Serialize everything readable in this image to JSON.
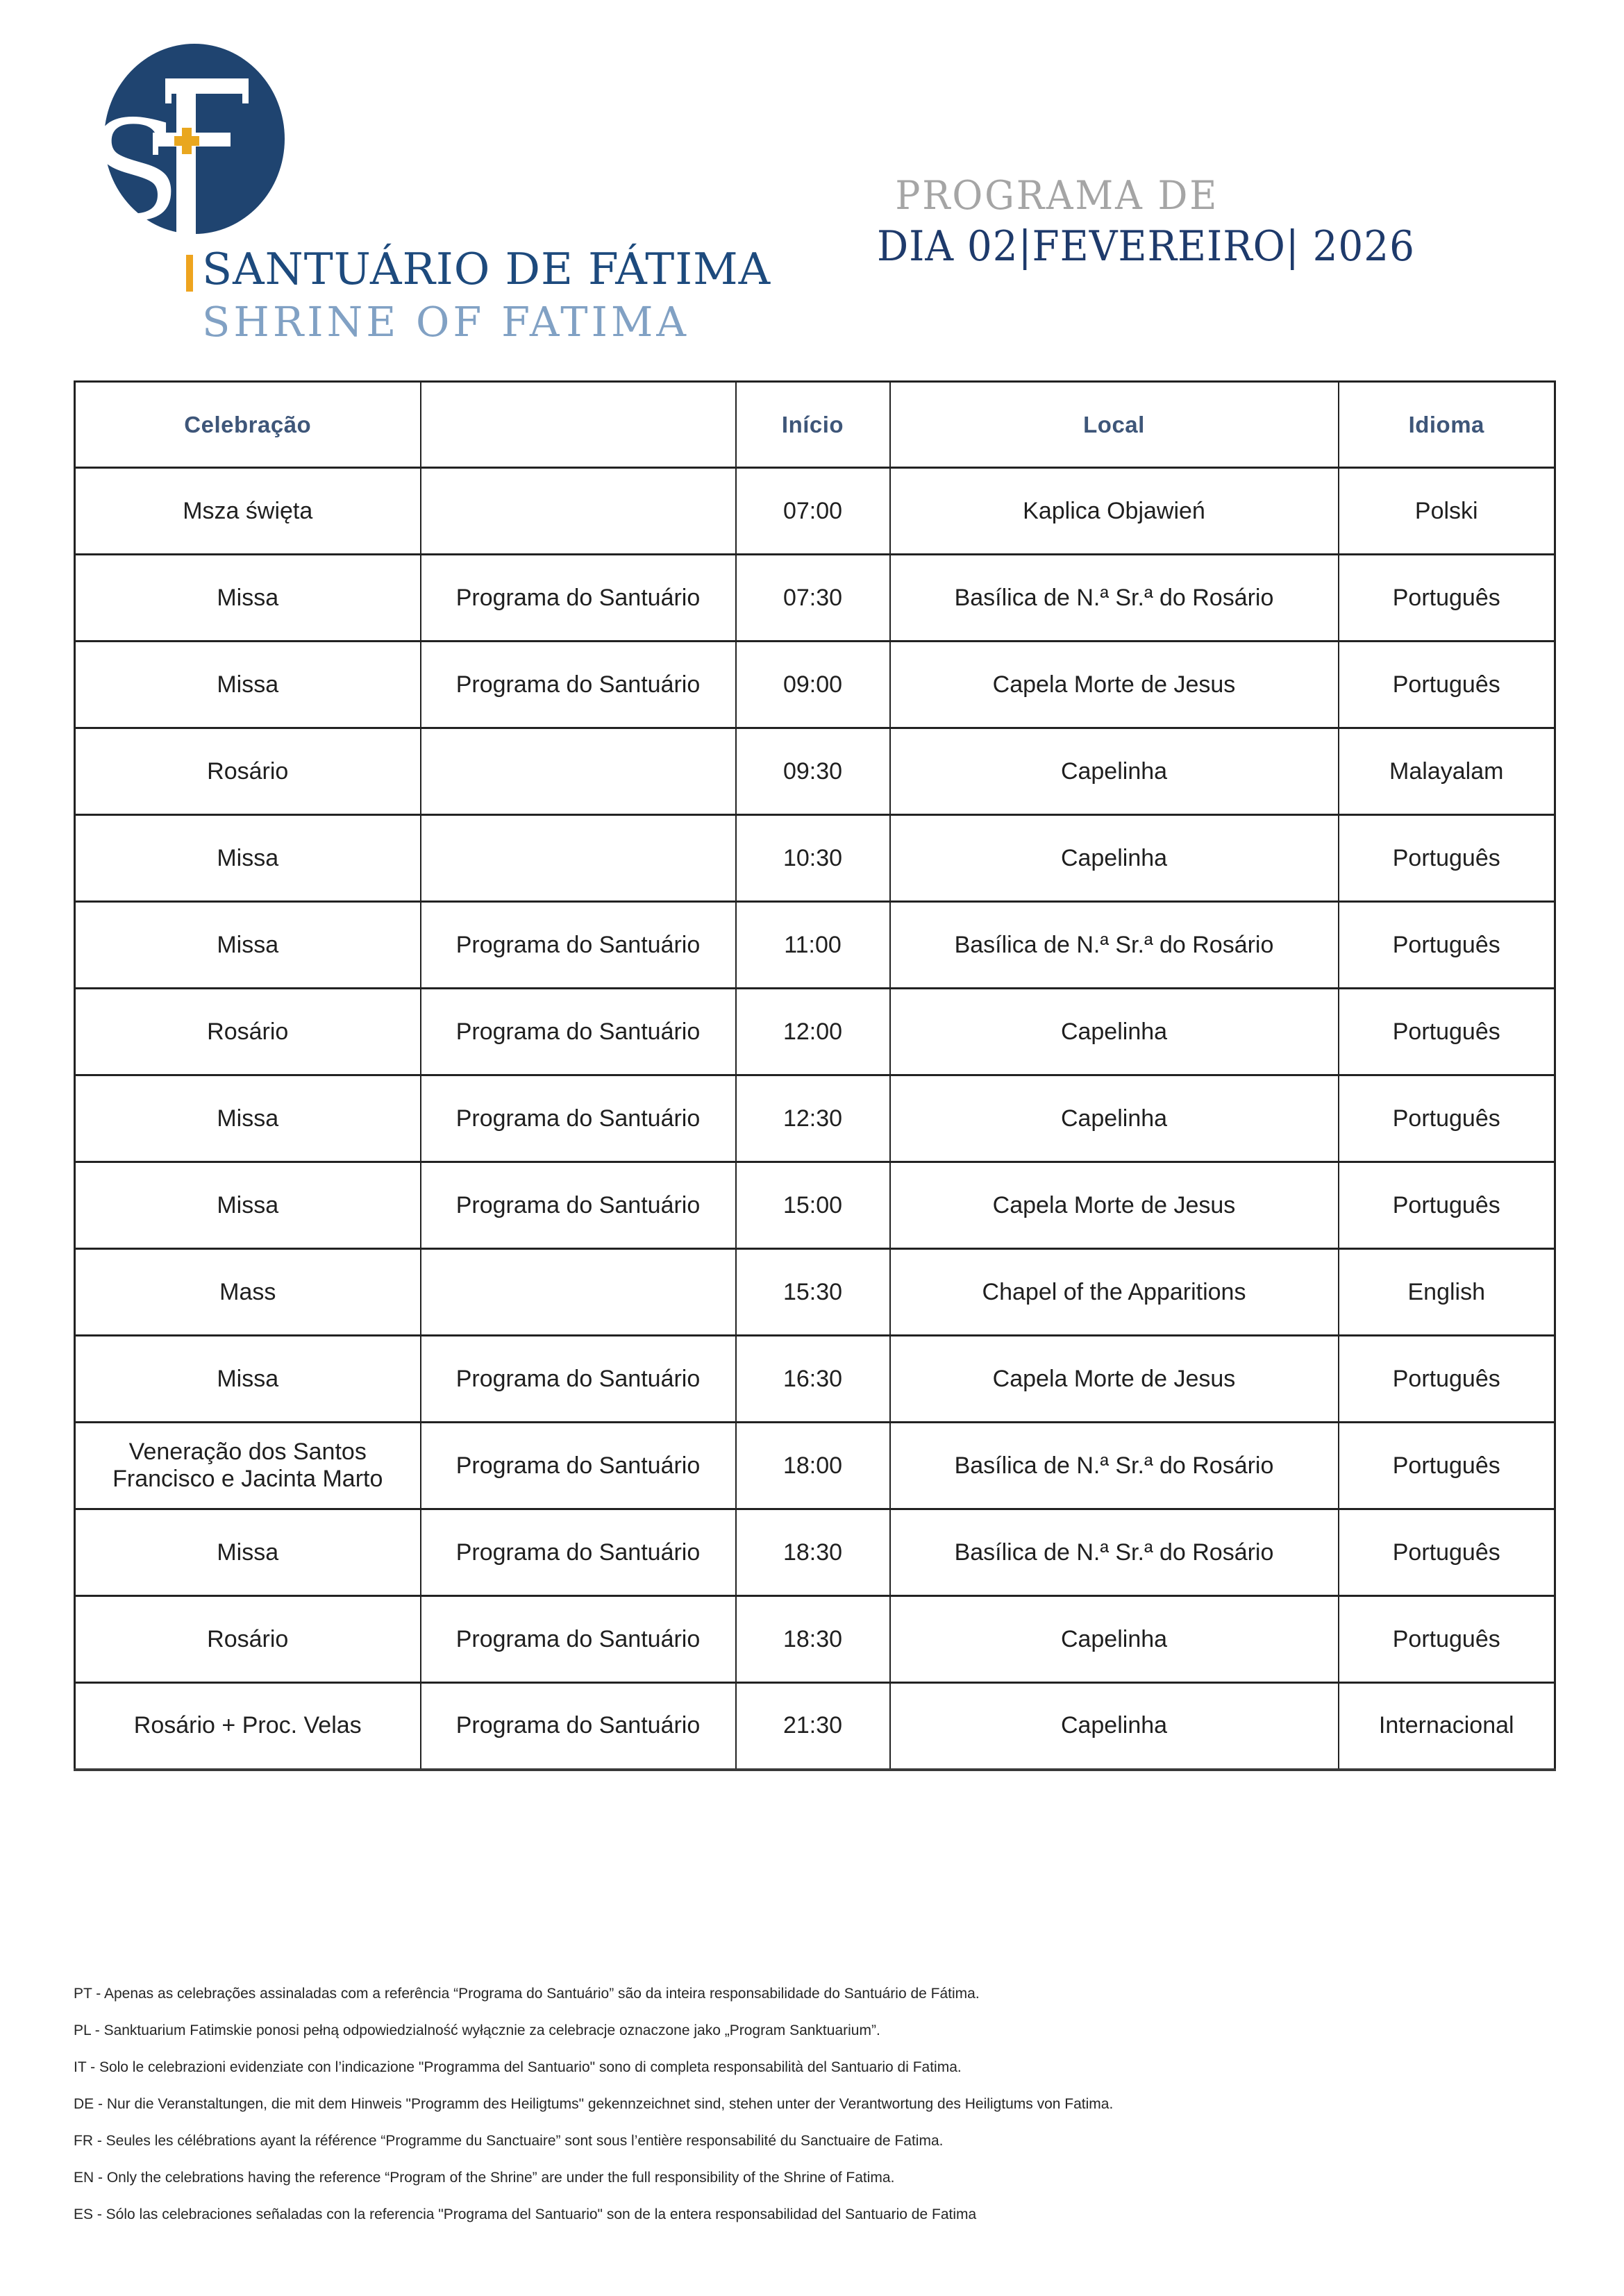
{
  "logo": {
    "monogram_s": "S",
    "name_pt": "SANTUÁRIO DE FÁTIMA",
    "name_en": "SHRINE OF FATIMA"
  },
  "title": {
    "line1": "PROGRAMA DE",
    "line2": "DIA 02|FEVEREIRO| 2026"
  },
  "colors": {
    "logo_navy": "#1F4470",
    "logo_gold": "#E9A71F",
    "name_pt_blue": "#1D4A7D",
    "name_en_blue": "#81A1C4",
    "title_gray": "#A5A5A5",
    "title_navy": "#1E3A6B",
    "header_blue": "#3E5679",
    "table_border": "#222222",
    "body_text": "#1f1f1f"
  },
  "table": {
    "headers": [
      "Celebração",
      "",
      "Início",
      "Local",
      "Idioma"
    ],
    "rows": [
      [
        "Msza święta",
        "",
        "07:00",
        "Kaplica Objawień",
        "Polski"
      ],
      [
        "Missa",
        "Programa do Santuário",
        "07:30",
        "Basílica de N.ª Sr.ª do Rosário",
        "Português"
      ],
      [
        "Missa",
        "Programa do Santuário",
        "09:00",
        "Capela Morte de Jesus",
        "Português"
      ],
      [
        "Rosário",
        "",
        "09:30",
        "Capelinha",
        "Malayalam"
      ],
      [
        "Missa",
        "",
        "10:30",
        "Capelinha",
        "Português"
      ],
      [
        "Missa",
        "Programa do Santuário",
        "11:00",
        "Basílica de N.ª Sr.ª do Rosário",
        "Português"
      ],
      [
        "Rosário",
        "Programa do Santuário",
        "12:00",
        "Capelinha",
        "Português"
      ],
      [
        "Missa",
        "Programa do Santuário",
        "12:30",
        "Capelinha",
        "Português"
      ],
      [
        "Missa",
        "Programa do Santuário",
        "15:00",
        "Capela Morte de Jesus",
        "Português"
      ],
      [
        "Mass",
        "",
        "15:30",
        "Chapel of the Apparitions",
        "English"
      ],
      [
        "Missa",
        "Programa do Santuário",
        "16:30",
        "Capela Morte de Jesus",
        "Português"
      ],
      [
        "Veneração dos Santos\nFrancisco e Jacinta Marto",
        "Programa do Santuário",
        "18:00",
        "Basílica de N.ª Sr.ª do Rosário",
        "Português"
      ],
      [
        "Missa",
        "Programa do Santuário",
        "18:30",
        "Basílica de N.ª Sr.ª do Rosário",
        "Português"
      ],
      [
        "Rosário",
        "Programa do Santuário",
        "18:30",
        "Capelinha",
        "Português"
      ],
      [
        "Rosário + Proc. Velas",
        "Programa do Santuário",
        "21:30",
        "Capelinha",
        "Internacional"
      ]
    ]
  },
  "footnotes": [
    "PT - Apenas as celebrações assinaladas com a referência “Programa do Santuário” são da inteira responsabilidade do Santuário de Fátima.",
    "PL - Sanktuarium Fatimskie ponosi pełną odpowiedzialność wyłącznie za celebracje oznaczone jako „Program Sanktuarium”.",
    "IT - Solo le celebrazioni evidenziate con l’indicazione \"Programma del Santuario\" sono di completa responsabilità del Santuario di Fatima.",
    "DE - Nur die Veranstaltungen, die mit dem Hinweis \"Programm des Heiligtums\" gekennzeichnet sind, stehen unter der Verantwortung des Heiligtums von Fatima.",
    "FR - Seules les célébrations ayant la référence “Programme du Sanctuaire” sont sous l’entière responsabilité du Sanctuaire de Fatima.",
    "EN - Only the celebrations having the reference “Program of the Shrine” are under the full responsibility of the Shrine of Fatima.",
    "ES - Sólo las celebraciones señaladas con la referencia \"Programa del Santuario\" son de la entera responsabilidad del Santuario de Fatima"
  ]
}
